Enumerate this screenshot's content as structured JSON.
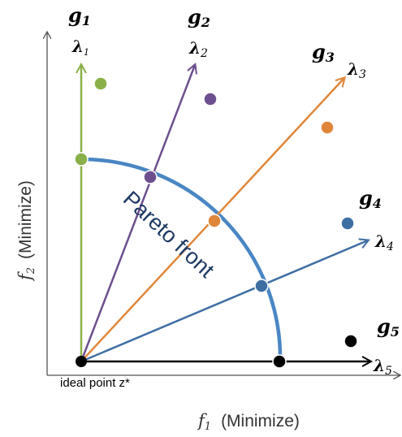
{
  "colors": {
    "axis": "#555555",
    "front": "#4a86c4",
    "green": "#8ab04a",
    "purple": "#6d4f8f",
    "orange": "#e0863a",
    "blue": "#3f6ea3",
    "black": "#000000",
    "text_blue": "#1f3a64"
  },
  "labels": {
    "x_axis_var": "f",
    "x_axis_sub": "1",
    "x_axis_text": "(Minimize)",
    "y_axis_var": "f",
    "y_axis_sub": "2",
    "y_axis_text": "(Minimize)",
    "front_label": "Pareto front",
    "ideal_point": "ideal point z*"
  },
  "groups": [
    {
      "g": "g",
      "g_sub": "1",
      "lambda": "λ",
      "lambda_sub": "1",
      "color": "green"
    },
    {
      "g": "g",
      "g_sub": "2",
      "lambda": "λ",
      "lambda_sub": "2",
      "color": "purple"
    },
    {
      "g": "g",
      "g_sub": "3",
      "lambda": "λ",
      "lambda_sub": "3",
      "color": "orange"
    },
    {
      "g": "g",
      "g_sub": "4",
      "lambda": "λ",
      "lambda_sub": "4",
      "color": "blue"
    },
    {
      "g": "g",
      "g_sub": "5",
      "lambda": "λ",
      "lambda_sub": "5",
      "color": "black"
    }
  ]
}
